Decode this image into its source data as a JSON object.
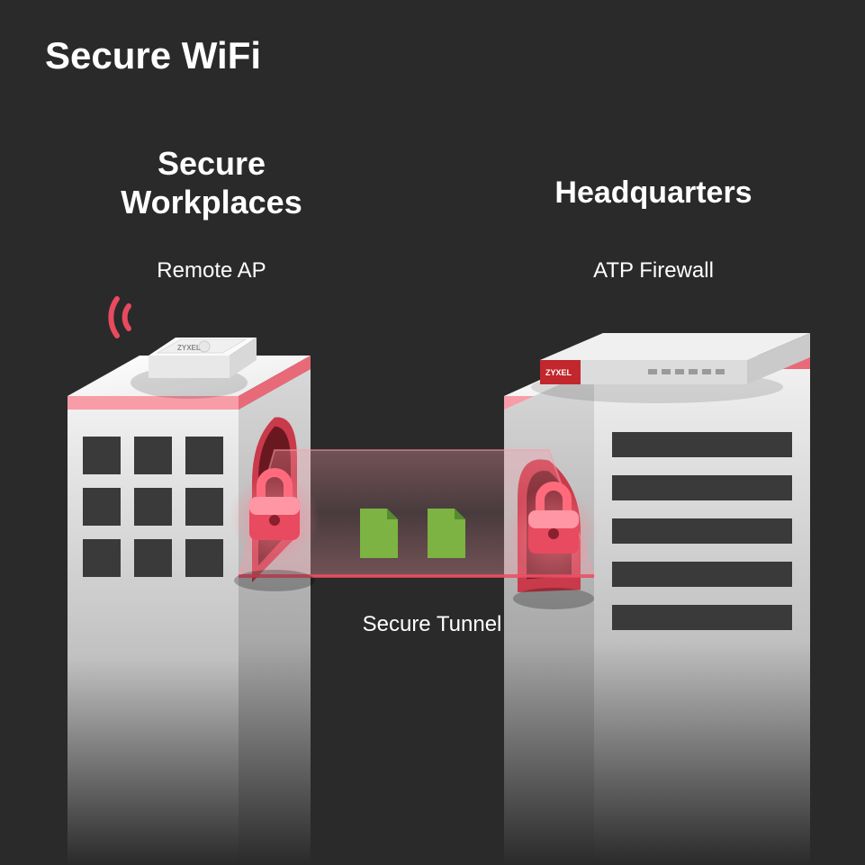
{
  "title": "Secure WiFi",
  "left": {
    "section": "Secure\nWorkplaces",
    "device": "Remote AP",
    "brand": "ZYXEL"
  },
  "right": {
    "section": "Headquarters",
    "device": "ATP Firewall",
    "brand": "ZYXEL"
  },
  "tunnel": "Secure Tunnel",
  "colors": {
    "bg": "#2a2a2a",
    "accent": "#e84a5f",
    "accentLight": "#f89ca8",
    "buildingTop": "#f5f5f5",
    "buildingSide": "#e8e8e8",
    "buildingFade": "#2a2a2a",
    "window": "#3a3a3a",
    "door": "#d63447",
    "doorInner": "#8a1f2e",
    "lock": "#e84a5f",
    "lockLight": "#ffb8c4",
    "doc": "#7cb342",
    "docDark": "#558b2f",
    "firewallRed": "#c1272d",
    "firewallGrey": "#d4d4d4",
    "apWhite": "#f5f5f5"
  }
}
